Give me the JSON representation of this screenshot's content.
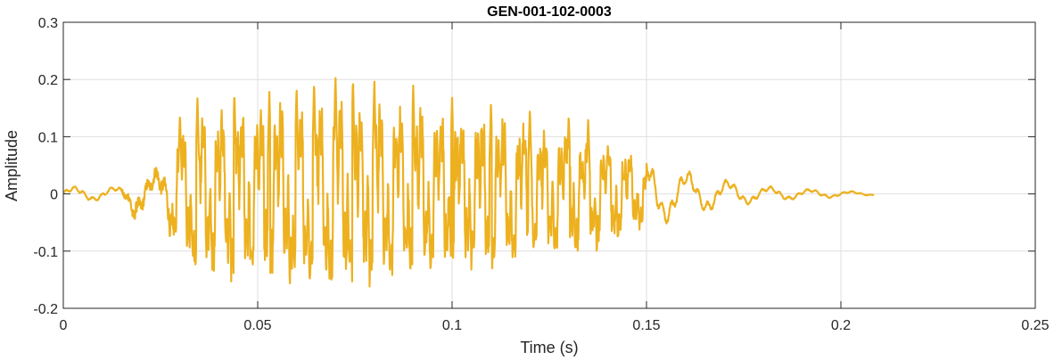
{
  "chart_data": {
    "type": "line",
    "title": "GEN-001-102-0003",
    "xlabel": "Time (s)",
    "ylabel": "Amplitude",
    "xlim": [
      0,
      0.25
    ],
    "ylim": [
      -0.2,
      0.3
    ],
    "grid": true,
    "legend": "none",
    "x_ticks": [
      0,
      0.05,
      0.1,
      0.15,
      0.2,
      0.25
    ],
    "x_tick_labels": [
      "0",
      "0.05",
      "0.1",
      "0.15",
      "0.2",
      "0.25"
    ],
    "y_ticks": [
      -0.2,
      -0.1,
      0,
      0.1,
      0.2,
      0.3
    ],
    "y_tick_labels": [
      "-0.2",
      "-0.1",
      "0",
      "0.1",
      "0.2",
      "0.3"
    ],
    "series": [
      {
        "color": "#EDB120",
        "x_start": 0,
        "x_end": 0.2085,
        "envelope": [
          {
            "t": 0.0,
            "a": 0.01
          },
          {
            "t": 0.005,
            "a": 0.012
          },
          {
            "t": 0.01,
            "a": 0.01
          },
          {
            "t": 0.015,
            "a": 0.012
          },
          {
            "t": 0.018,
            "a": 0.035
          },
          {
            "t": 0.022,
            "a": 0.03
          },
          {
            "t": 0.026,
            "a": 0.04
          },
          {
            "t": 0.029,
            "a": 0.1
          },
          {
            "t": 0.032,
            "a": 0.13
          },
          {
            "t": 0.036,
            "a": 0.16
          },
          {
            "t": 0.045,
            "a": 0.16
          },
          {
            "t": 0.055,
            "a": 0.17
          },
          {
            "t": 0.065,
            "a": 0.175
          },
          {
            "t": 0.07,
            "a": 0.19
          },
          {
            "t": 0.08,
            "a": 0.17
          },
          {
            "t": 0.09,
            "a": 0.165
          },
          {
            "t": 0.1,
            "a": 0.15
          },
          {
            "t": 0.11,
            "a": 0.145
          },
          {
            "t": 0.12,
            "a": 0.13
          },
          {
            "t": 0.13,
            "a": 0.12
          },
          {
            "t": 0.14,
            "a": 0.1
          },
          {
            "t": 0.148,
            "a": 0.07
          },
          {
            "t": 0.152,
            "a": 0.05
          },
          {
            "t": 0.16,
            "a": 0.035
          },
          {
            "t": 0.17,
            "a": 0.022
          },
          {
            "t": 0.18,
            "a": 0.012
          },
          {
            "t": 0.19,
            "a": 0.008
          },
          {
            "t": 0.2,
            "a": 0.005
          },
          {
            "t": 0.2085,
            "a": 0.002
          }
        ],
        "peaks": [
          {
            "t": 0.03,
            "v": 0.14
          },
          {
            "t": 0.0345,
            "v": 0.17
          },
          {
            "t": 0.044,
            "v": 0.18
          },
          {
            "t": 0.053,
            "v": 0.18
          },
          {
            "t": 0.06,
            "v": 0.19
          },
          {
            "t": 0.0645,
            "v": 0.2
          },
          {
            "t": 0.07,
            "v": 0.21
          },
          {
            "t": 0.0745,
            "v": 0.205
          },
          {
            "t": 0.08,
            "v": 0.2
          },
          {
            "t": 0.09,
            "v": 0.19
          },
          {
            "t": 0.1,
            "v": 0.17
          },
          {
            "t": 0.11,
            "v": 0.16
          },
          {
            "t": 0.12,
            "v": 0.15
          },
          {
            "t": 0.13,
            "v": 0.14
          },
          {
            "t": 0.135,
            "v": 0.13
          }
        ],
        "troughs": [
          {
            "t": 0.03,
            "v": -0.11
          },
          {
            "t": 0.034,
            "v": -0.13
          },
          {
            "t": 0.053,
            "v": -0.16
          },
          {
            "t": 0.0595,
            "v": -0.13
          },
          {
            "t": 0.0635,
            "v": -0.14
          },
          {
            "t": 0.08,
            "v": -0.17
          },
          {
            "t": 0.09,
            "v": -0.13
          },
          {
            "t": 0.1,
            "v": -0.11
          },
          {
            "t": 0.12,
            "v": -0.1
          }
        ]
      }
    ]
  }
}
